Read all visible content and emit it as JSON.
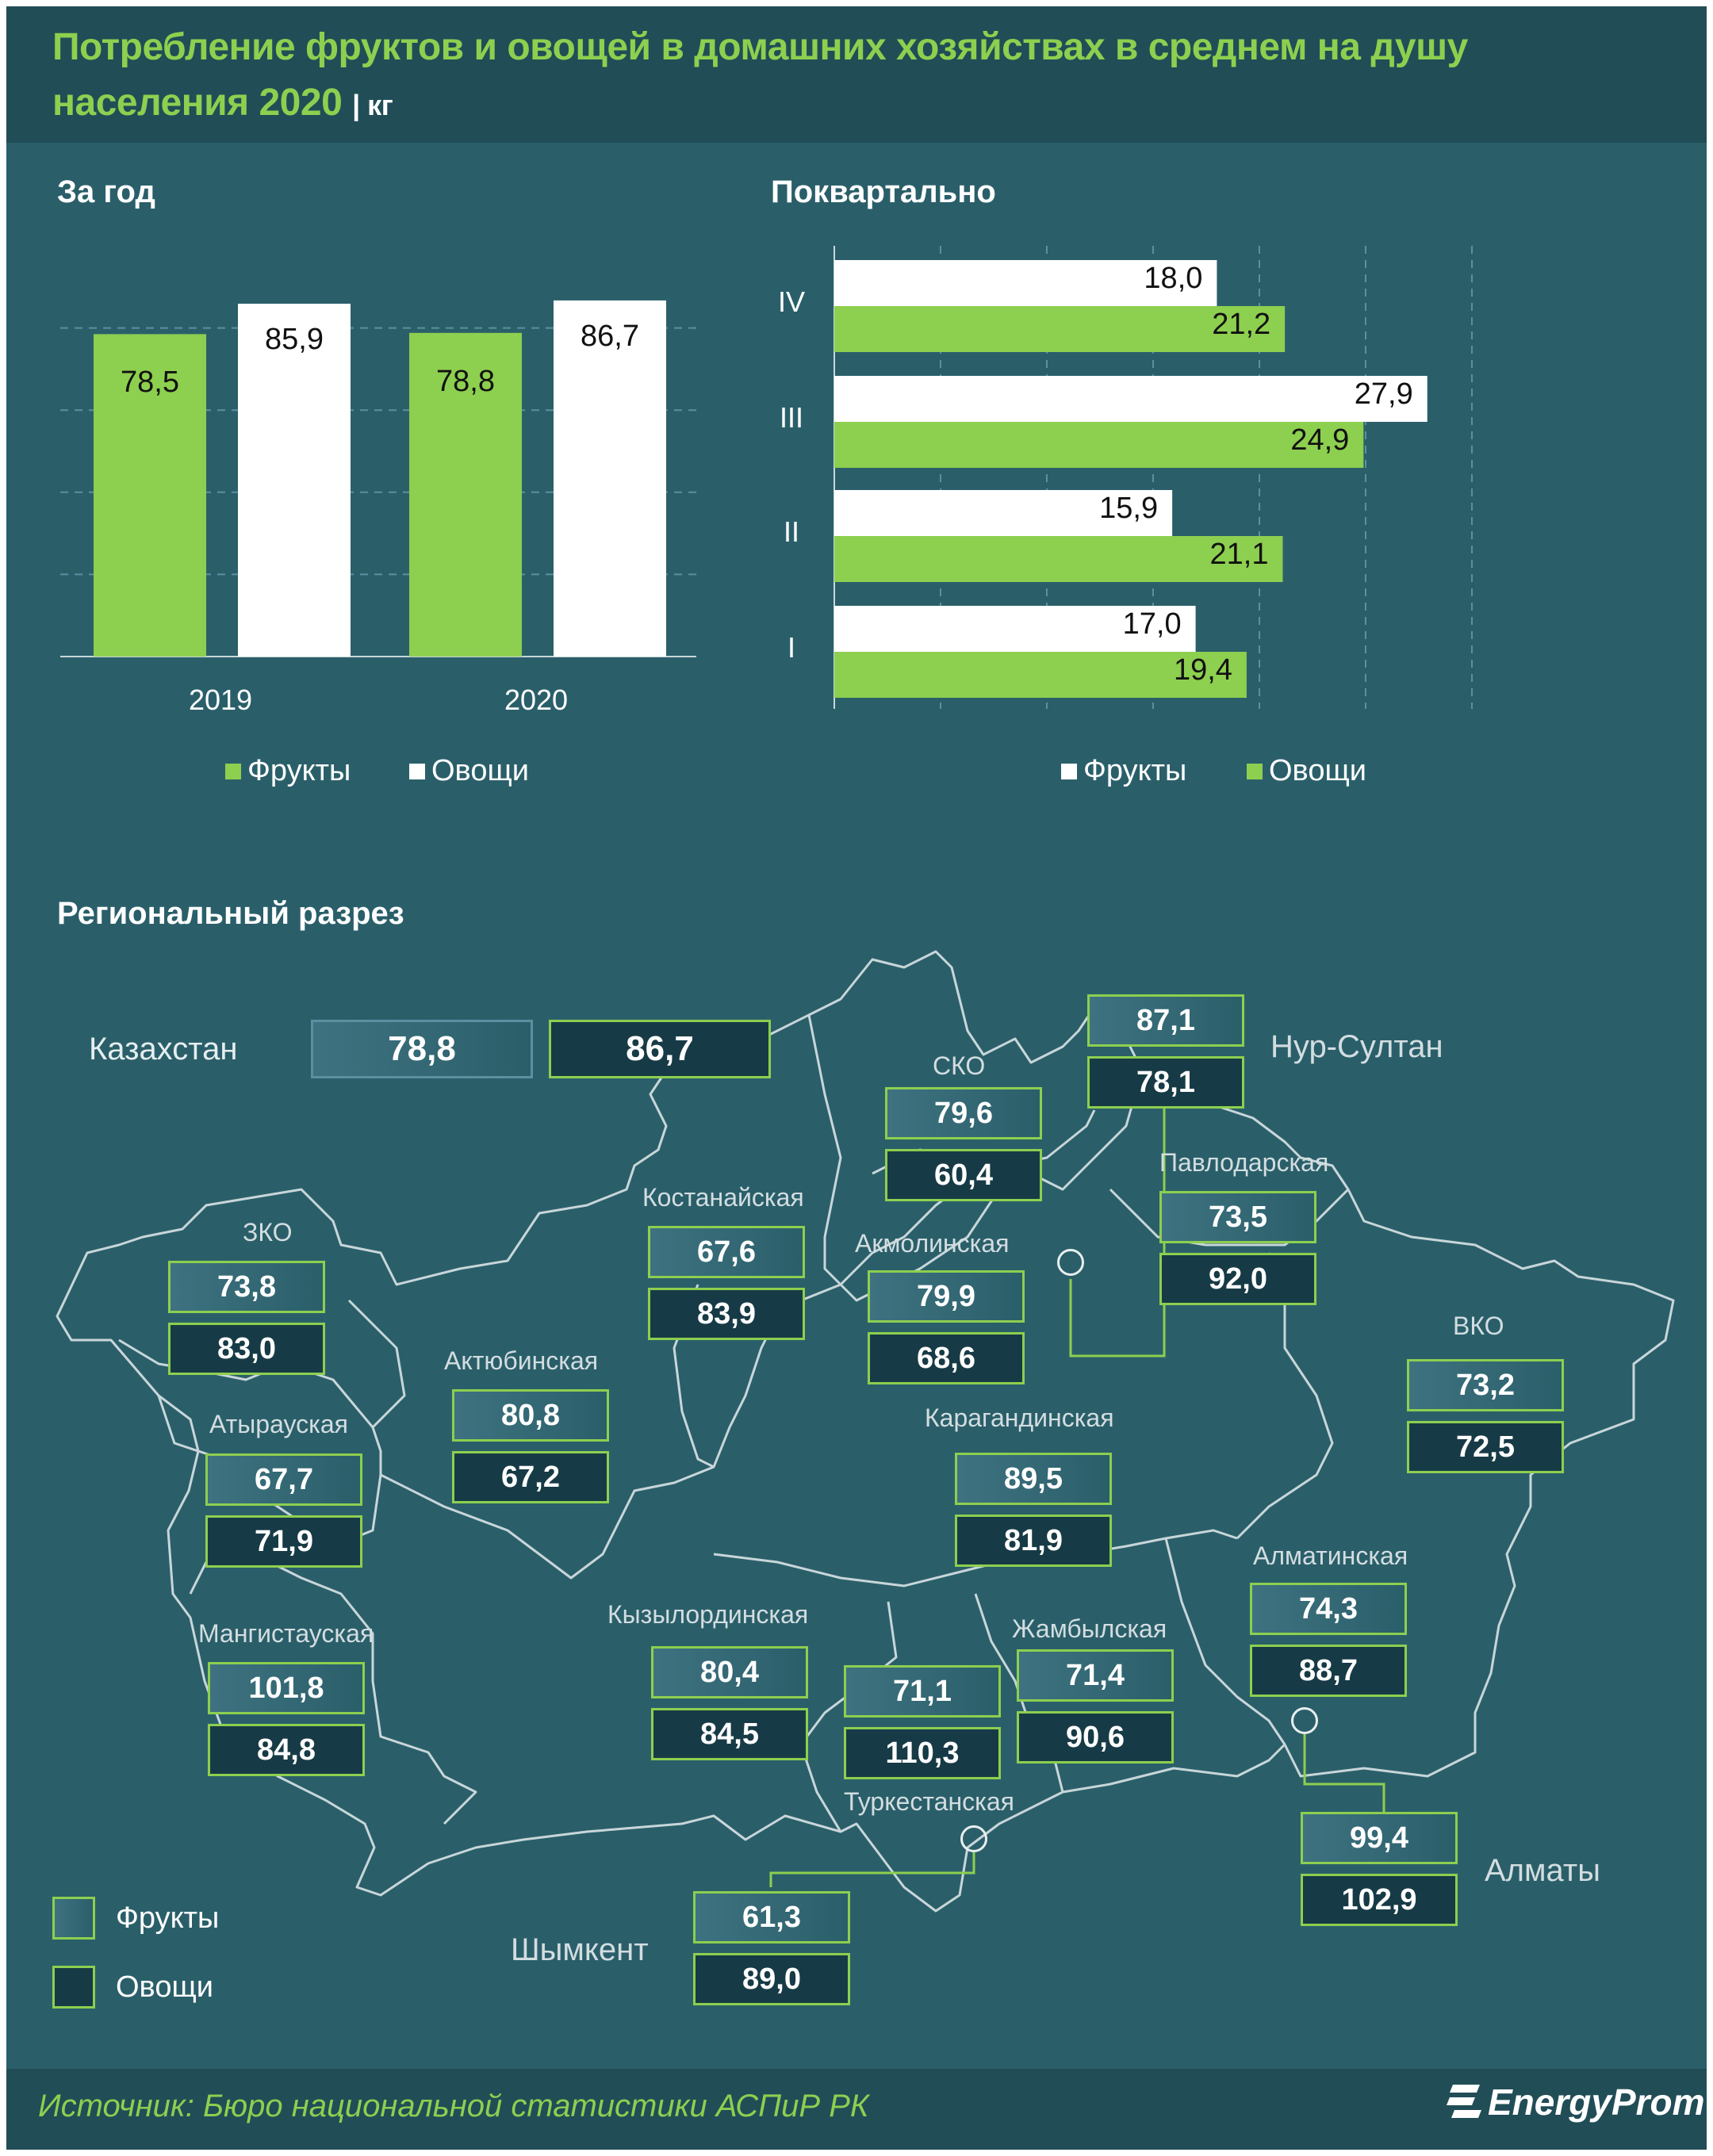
{
  "title_line1": "Потребление фруктов и овощей в домашних хозяйствах в среднем на душу",
  "title_line2": "населения 2020",
  "title_unit": "| кг",
  "annual": {
    "heading": "За год",
    "legend": {
      "fruits": "Фрукты",
      "veg": "Овощи"
    }
  },
  "quarterly": {
    "heading": "Поквартально",
    "legend": {
      "fruits": "Фрукты",
      "veg": "Овощи"
    }
  },
  "colors": {
    "fruits_annual": "#8dcf4f",
    "veg_annual": "#ffffff",
    "fruits_q": "#ffffff",
    "veg_q": "#8dcf4f",
    "background": "#2a5f6a"
  },
  "chart_data": [
    {
      "type": "bar",
      "title": "За год",
      "categories": [
        "2019",
        "2020"
      ],
      "series": [
        {
          "name": "Фрукты",
          "values": [
            78.5,
            78.8
          ],
          "labels": [
            "78,5",
            "78,8"
          ]
        },
        {
          "name": "Овощи",
          "values": [
            85.9,
            86.7
          ],
          "labels": [
            "85,9",
            "86,7"
          ]
        }
      ],
      "grid": true,
      "legend": "bottom"
    },
    {
      "type": "bar",
      "orientation": "horizontal",
      "title": "Поквартально",
      "categories": [
        "IV",
        "III",
        "II",
        "I"
      ],
      "series": [
        {
          "name": "Фрукты",
          "values": [
            18.0,
            27.9,
            15.9,
            17.0
          ],
          "labels": [
            "18,0",
            "27,9",
            "15,9",
            "17,0"
          ]
        },
        {
          "name": "Овощи",
          "values": [
            21.2,
            24.9,
            21.1,
            19.4
          ],
          "labels": [
            "21,2",
            "24,9",
            "21,1",
            "19,4"
          ]
        }
      ],
      "grid": true,
      "legend": "bottom"
    }
  ],
  "regional": {
    "heading": "Региональный  разрез",
    "kazakhstan": {
      "name": "Казахстан",
      "fruits": "78,8",
      "veg": "86,7"
    },
    "regions": [
      {
        "key": "nursultan",
        "name": "Нур-Султан",
        "fruits": "87,1",
        "veg": "78,1"
      },
      {
        "key": "sko",
        "name": "СКО",
        "fruits": "79,6",
        "veg": "60,4"
      },
      {
        "key": "pavlodar",
        "name": "Павлодарская",
        "fruits": "73,5",
        "veg": "92,0"
      },
      {
        "key": "kostanay",
        "name": "Костанайская",
        "fruits": "67,6",
        "veg": "83,9"
      },
      {
        "key": "akmola",
        "name": "Акмолинская",
        "fruits": "79,9",
        "veg": "68,6"
      },
      {
        "key": "zko",
        "name": "ЗКО",
        "fruits": "73,8",
        "veg": "83,0"
      },
      {
        "key": "aktobe",
        "name": "Актюбинская",
        "fruits": "80,8",
        "veg": "67,2"
      },
      {
        "key": "vko",
        "name": "ВКО",
        "fruits": "73,2",
        "veg": "72,5"
      },
      {
        "key": "karaganda",
        "name": "Карагандинская",
        "fruits": "89,5",
        "veg": "81,9"
      },
      {
        "key": "atyrau",
        "name": "Атырауская",
        "fruits": "67,7",
        "veg": "71,9"
      },
      {
        "key": "almatyobl",
        "name": "Алматинская",
        "fruits": "74,3",
        "veg": "88,7"
      },
      {
        "key": "mangistau",
        "name": "Мангистауская",
        "fruits": "101,8",
        "veg": "84,8"
      },
      {
        "key": "kyzylorda",
        "name": "Кызылординская",
        "fruits": "80,4",
        "veg": "84,5"
      },
      {
        "key": "turkestan",
        "name": "Туркестанская",
        "fruits": "71,1",
        "veg": "110,3"
      },
      {
        "key": "zhambyl",
        "name": "Жамбылская",
        "fruits": "71,4",
        "veg": "90,6"
      },
      {
        "key": "almaty",
        "name": "Алматы",
        "fruits": "99,4",
        "veg": "102,9"
      },
      {
        "key": "shymkent",
        "name": "Шымкент",
        "fruits": "61,3",
        "veg": "89,0"
      }
    ],
    "legend": {
      "fruits": "Фрукты",
      "veg": "Овощи"
    }
  },
  "source": "Источник: Бюро национальной  статистики АСПиР РК",
  "logo": "EnergyProm"
}
